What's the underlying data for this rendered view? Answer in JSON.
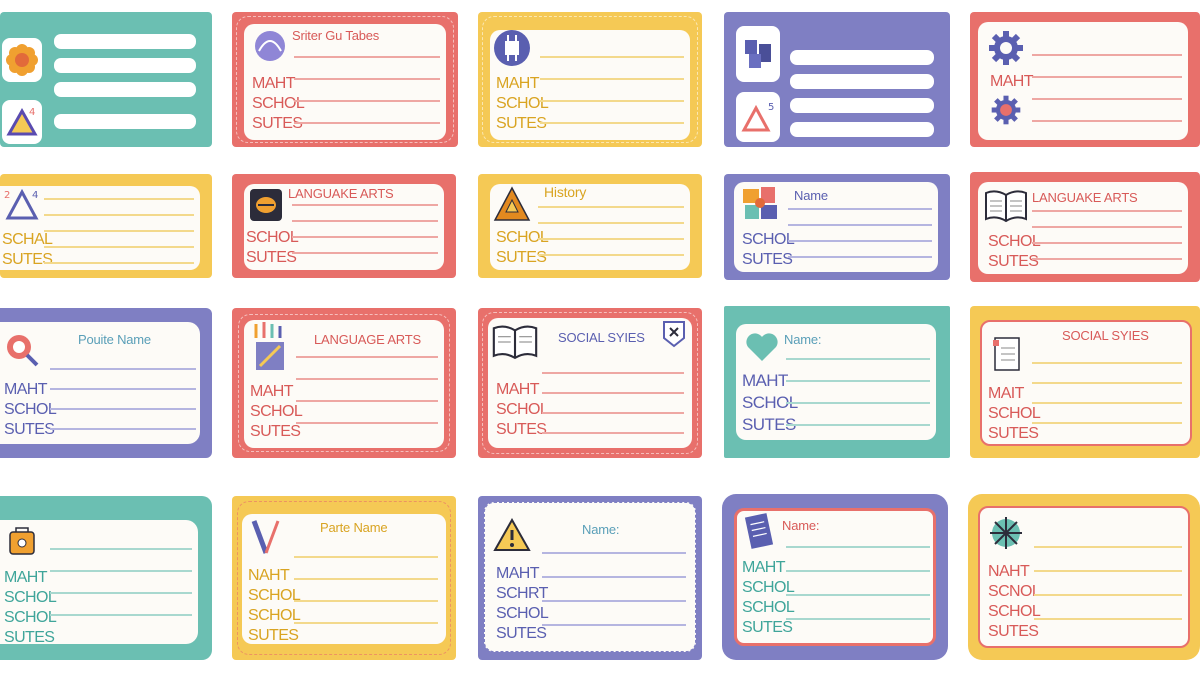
{
  "colors": {
    "teal": "#6bbfb2",
    "coral": "#e8706b",
    "yellow": "#f5c955",
    "purple": "#7f7fc3",
    "panel": "#fdfbf7"
  },
  "labels": [
    {
      "id": "r1c1",
      "color": "teal",
      "icons": [
        "flower-icon",
        "triangle-icon"
      ],
      "title": "",
      "lines": [
        "",
        "",
        "",
        ""
      ]
    },
    {
      "id": "r1c2",
      "color": "coral",
      "icons": [
        "circle-arc-icon"
      ],
      "title": "Sriter Gu Tabes",
      "lines": [
        "MAHT",
        "SCHOL",
        "SUTES"
      ]
    },
    {
      "id": "r1c3",
      "color": "yellow",
      "icons": [
        "chip-icon"
      ],
      "title": "",
      "lines": [
        "MAHT",
        "SCHOL",
        "SUTES"
      ]
    },
    {
      "id": "r1c4",
      "color": "purple",
      "icons": [
        "books-icon",
        "triangle-icon"
      ],
      "title": "",
      "lines": []
    },
    {
      "id": "r1c5",
      "color": "coral",
      "icons": [
        "gear-icon",
        "gear-icon"
      ],
      "title": "",
      "lines": [
        "MAHT"
      ]
    },
    {
      "id": "r2c1",
      "color": "yellow",
      "icons": [
        "triangle-icon"
      ],
      "title": "",
      "lines": [
        "SCHAL",
        "SUTES"
      ]
    },
    {
      "id": "r2c2",
      "color": "coral",
      "icons": [
        "box-icon"
      ],
      "title": "LANGUAKE ARTS",
      "lines": [
        "SCHOL",
        "SUTES"
      ]
    },
    {
      "id": "r2c3",
      "color": "yellow",
      "icons": [
        "triangle-warning-icon"
      ],
      "title": "History",
      "lines": [
        "SCHOL",
        "SUTES"
      ]
    },
    {
      "id": "r2c4",
      "color": "purple",
      "icons": [
        "puzzle-icon"
      ],
      "title": "Name",
      "lines": [
        "SCHOL",
        "SUTES"
      ]
    },
    {
      "id": "r2c5",
      "color": "coral",
      "icons": [
        "open-book-icon"
      ],
      "title": "LANGUAKE ARTS",
      "lines": [
        "SCHOL",
        "SUTES"
      ]
    },
    {
      "id": "r3c1",
      "color": "purple",
      "icons": [
        "magnifier-icon"
      ],
      "title": "Pouite Name",
      "lines": [
        "MAHT",
        "SCHOL",
        "SUTES"
      ]
    },
    {
      "id": "r3c2",
      "color": "coral",
      "icons": [
        "pencils-icon"
      ],
      "title": "LANGUAGE ARTS",
      "lines": [
        "MAHT",
        "SCHOL",
        "SUTES"
      ]
    },
    {
      "id": "r3c3",
      "color": "coral",
      "icons": [
        "open-book-icon",
        "badge-icon"
      ],
      "title": "SOCIAL SYIES",
      "lines": [
        "MAHT",
        "SCHOL",
        "SUTES"
      ]
    },
    {
      "id": "r3c4",
      "color": "teal",
      "icons": [
        "heart-icon"
      ],
      "title": "Name:",
      "lines": [
        "MAHT",
        "SCHOL",
        "SUTES"
      ]
    },
    {
      "id": "r3c5",
      "color": "yellow",
      "icons": [
        "notebook-icon"
      ],
      "title": "SOCIAL SYIES",
      "lines": [
        "MAIT",
        "SCHOL",
        "SUTES"
      ]
    },
    {
      "id": "r4c1",
      "color": "teal",
      "icons": [
        "bag-icon"
      ],
      "title": "",
      "lines": [
        "MAHT",
        "SCHOL",
        "SCHOL",
        "SUTES"
      ]
    },
    {
      "id": "r4c2",
      "color": "yellow",
      "icons": [
        "pencil-icon"
      ],
      "title": "Parte Name",
      "lines": [
        "NAHT",
        "SCHOL",
        "SCHOL",
        "SUTES"
      ]
    },
    {
      "id": "r4c3",
      "color": "purple",
      "icons": [
        "warning-icon"
      ],
      "title": "Name:",
      "lines": [
        "MAHT",
        "SCHRT",
        "SCHOL",
        "SUTES"
      ]
    },
    {
      "id": "r4c4",
      "color": "purple",
      "icons": [
        "notebook-icon"
      ],
      "title": "Name:",
      "lines": [
        "MAHT",
        "SCHOL",
        "SCHOL",
        "SUTES"
      ]
    },
    {
      "id": "r4c5",
      "color": "yellow",
      "icons": [
        "star-burst-icon"
      ],
      "title": "",
      "lines": [
        "NAHT",
        "SCNOL",
        "SCHOL",
        "SUTES"
      ]
    }
  ]
}
